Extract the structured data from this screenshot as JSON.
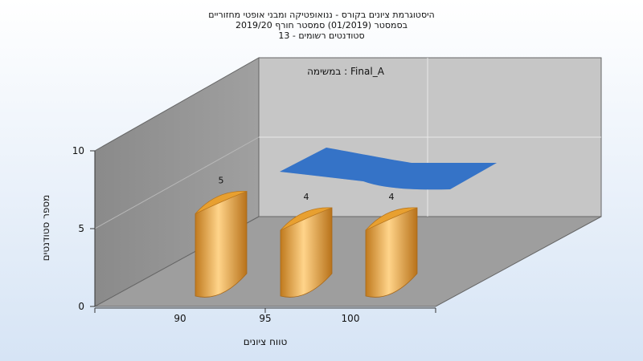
{
  "chart_data": {
    "type": "bar",
    "title_lines": [
      "היסטוגרמת ציונים בקורס - ננואופטיקה ומבני אופטי מחזוריים",
      "בסמסטר  (01/2019)  סמסטר חורף 2019/20",
      "סטודנטים רשומים - 13"
    ],
    "categories": [
      "90",
      "95",
      "100"
    ],
    "values": [
      5,
      4,
      4
    ],
    "data_labels": [
      "5",
      "4",
      "4"
    ],
    "xlabel": "טווח ציונים",
    "ylabel": "מספר סטודנטים",
    "ylim": [
      0,
      10
    ],
    "yticks": [
      "0",
      "5",
      "10"
    ],
    "legend": "במשימה : Final_A",
    "grid": true,
    "bar_color": "#f2b04a",
    "area_color": "#3a7ad0"
  }
}
